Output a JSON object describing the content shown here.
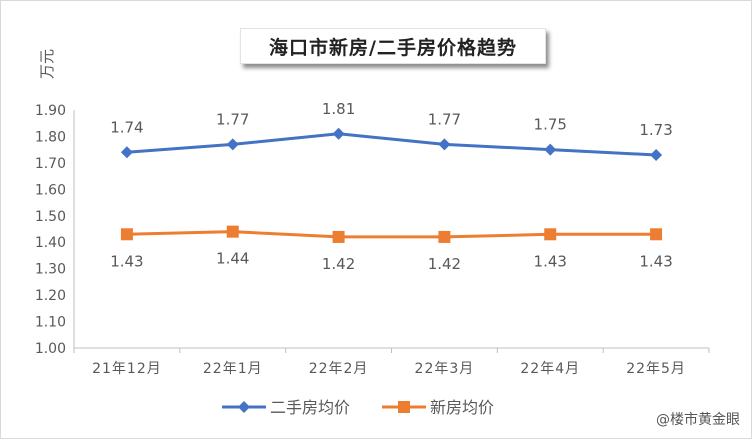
{
  "chart_data": {
    "type": "line",
    "title": "海口市新房/二手房价格趋势",
    "ylabel": "万元",
    "xlabel": "",
    "categories": [
      "21年12月",
      "22年1月",
      "22年2月",
      "22年3月",
      "22年4月",
      "22年5月"
    ],
    "ylim": [
      1.0,
      1.9
    ],
    "yticks": [
      "1.00",
      "1.10",
      "1.20",
      "1.30",
      "1.40",
      "1.50",
      "1.60",
      "1.70",
      "1.80",
      "1.90"
    ],
    "grid": false,
    "legend_position": "bottom",
    "series": [
      {
        "name": "二手房均价",
        "values": [
          1.74,
          1.77,
          1.81,
          1.77,
          1.75,
          1.73
        ],
        "labels": [
          "1.74",
          "1.77",
          "1.81",
          "1.77",
          "1.75",
          "1.73"
        ],
        "color": "#4472C4",
        "marker": "diamond",
        "label_position": "above"
      },
      {
        "name": "新房均价",
        "values": [
          1.43,
          1.44,
          1.42,
          1.42,
          1.43,
          1.43
        ],
        "labels": [
          "1.43",
          "1.44",
          "1.42",
          "1.42",
          "1.43",
          "1.43"
        ],
        "color": "#ED7D31",
        "marker": "square",
        "label_position": "below"
      }
    ]
  },
  "watermark": "@楼市黄金眼"
}
